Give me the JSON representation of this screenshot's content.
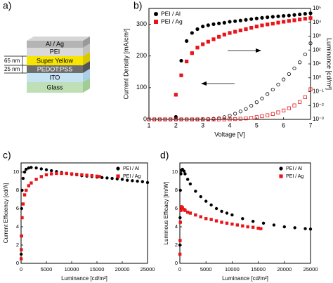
{
  "panel_labels": [
    "a)",
    "b)",
    "c)",
    "d)"
  ],
  "stack": {
    "layers": [
      "Al / Ag",
      "PEI",
      "Super Yellow",
      "PEDOT:PSS",
      "ITO",
      "Glass"
    ],
    "thicknesses": [
      "65 nm",
      "25 nm"
    ]
  },
  "chart_data": [
    {
      "type": "scatter",
      "xlabel": "Voltage [V]",
      "ylabel": "Current Density [mA/cm²]",
      "y2label": "Luminance [cd/m²]",
      "xlim": [
        1,
        7
      ],
      "xticks": [
        1,
        2,
        3,
        4,
        5,
        6,
        7
      ],
      "ylim": [
        0,
        350
      ],
      "yticks": [
        0,
        100,
        200,
        300
      ],
      "y2lim": [
        0.001,
        100000
      ],
      "y2log": true,
      "y2ticks": [
        {
          "value": 0.001,
          "label": "10⁻³"
        },
        {
          "value": 0.01,
          "label": "10⁻²"
        },
        {
          "value": 0.1,
          "label": "10⁻¹"
        },
        {
          "value": 1,
          "label": "10⁰"
        },
        {
          "value": 10,
          "label": "10¹"
        },
        {
          "value": 100,
          "label": "10²"
        },
        {
          "value": 1000,
          "label": "10³"
        },
        {
          "value": 10000,
          "label": "10⁴"
        },
        {
          "value": 100000,
          "label": "10⁵"
        }
      ],
      "legend": "upper left",
      "x": [
        1.0,
        1.2,
        1.4,
        1.6,
        1.8,
        2.0,
        2.2,
        2.4,
        2.6,
        2.8,
        3.0,
        3.2,
        3.4,
        3.6,
        3.8,
        4.0,
        4.2,
        4.4,
        4.6,
        4.8,
        5.0,
        5.2,
        5.4,
        5.6,
        5.8,
        6.0,
        6.2,
        6.4,
        6.6,
        6.8,
        7.0
      ],
      "series": [
        {
          "name": "PEI / Al",
          "color": "#000000",
          "marker": "circle",
          "filled": true,
          "axis": "y2",
          "values": [
            null,
            null,
            null,
            null,
            null,
            0.0015,
            17,
            450,
            1700,
            3200,
            5000,
            6200,
            7300,
            8300,
            9300,
            11000,
            12000,
            13500,
            15000,
            17000,
            19000,
            21000,
            23000,
            25000,
            27000,
            29000,
            31000,
            34000,
            37000,
            41000,
            45000
          ]
        },
        {
          "name": "PEI / Ag",
          "color": "#e8151b",
          "marker": "square",
          "filled": true,
          "axis": "y2",
          "values": [
            null,
            null,
            null,
            null,
            null,
            0.06,
            1.5,
            15,
            60,
            150,
            260,
            400,
            600,
            900,
            1300,
            1700,
            2100,
            2600,
            3200,
            4000,
            5000,
            6000,
            7000,
            8000,
            9500,
            11000,
            12500,
            14000,
            16000,
            18000,
            20000
          ]
        },
        {
          "color": "#000000",
          "marker": "circle",
          "filled": false,
          "values": [
            0,
            0,
            0,
            0,
            0,
            0,
            0,
            0,
            0,
            0,
            0.5,
            1,
            2,
            4,
            7,
            12,
            18,
            25,
            33,
            43,
            54,
            66,
            80,
            94,
            110,
            126,
            143,
            161,
            180,
            205,
            240
          ]
        },
        {
          "color": "#e8151b",
          "marker": "square",
          "filled": false,
          "values": [
            0,
            0,
            0,
            0,
            0,
            0,
            0,
            0,
            0,
            0,
            0,
            0,
            0,
            0,
            0,
            0.5,
            1,
            2,
            3,
            5,
            7,
            10,
            13,
            17,
            22,
            28,
            35,
            44,
            55,
            70,
            95
          ]
        }
      ]
    },
    {
      "type": "scatter",
      "xlabel": "Luminance [cd/m²]",
      "ylabel": "Current Efficiency [cd/A]",
      "xlim": [
        0,
        25000
      ],
      "xticks": [
        0,
        5000,
        10000,
        15000,
        20000,
        25000
      ],
      "ylim": [
        0,
        11
      ],
      "yticks": [
        0,
        2,
        4,
        6,
        8,
        10
      ],
      "legend": "upper right",
      "series": [
        {
          "name": "PEI / Al",
          "color": "#000000",
          "marker": "circle",
          "filled": true,
          "x": [
            20,
            50,
            100,
            200,
            400,
            700,
            1000,
            1500,
            2000,
            3000,
            4000,
            5000,
            6000,
            7000,
            8000,
            9000,
            10000,
            11000,
            12000,
            13000,
            14000,
            15000,
            16000,
            17000,
            18000,
            19000,
            20000,
            21000,
            22000,
            23000,
            24000,
            25000
          ],
          "values": [
            1,
            3,
            6,
            8,
            9.3,
            10,
            10.3,
            10.45,
            10.5,
            10.45,
            10.35,
            10.25,
            10.15,
            10.05,
            9.95,
            9.85,
            9.75,
            9.7,
            9.6,
            9.55,
            9.5,
            9.45,
            9.4,
            9.35,
            9.3,
            9.25,
            9.2,
            9.1,
            9.05,
            9.0,
            8.95,
            8.85
          ]
        },
        {
          "name": "PEI / Ag",
          "color": "#e8151b",
          "marker": "square",
          "filled": true,
          "x": [
            20,
            50,
            100,
            200,
            400,
            700,
            1000,
            1500,
            2000,
            3000,
            4000,
            5000,
            6000,
            7000,
            8000,
            9000,
            10000,
            11000,
            12000,
            13000,
            14000,
            15000,
            15500
          ],
          "values": [
            0.5,
            1.5,
            3,
            5,
            6.5,
            7.5,
            8,
            8.5,
            8.8,
            9.2,
            9.5,
            9.7,
            9.8,
            9.85,
            9.85,
            9.85,
            9.8,
            9.75,
            9.7,
            9.65,
            9.6,
            9.55,
            9.5
          ]
        }
      ]
    },
    {
      "type": "scatter",
      "xlabel": "Luminance [cd/m²]",
      "ylabel": "Luminous Efficacy [lm/W]",
      "xlim": [
        0,
        25000
      ],
      "xticks": [
        0,
        5000,
        10000,
        15000,
        20000,
        25000
      ],
      "ylim": [
        0,
        11
      ],
      "yticks": [
        0,
        2,
        4,
        6,
        8,
        10
      ],
      "legend": "upper right",
      "series": [
        {
          "name": "PEI / Al",
          "color": "#000000",
          "marker": "circle",
          "filled": true,
          "x": [
            20,
            50,
            100,
            200,
            300,
            500,
            800,
            1000,
            1500,
            2000,
            3000,
            4000,
            5000,
            6000,
            7000,
            8000,
            9000,
            10000,
            12000,
            14000,
            16000,
            18000,
            20000,
            22000,
            24000,
            25000
          ],
          "values": [
            2,
            5,
            8,
            9.8,
            10.2,
            10.3,
            10.1,
            9.8,
            9.2,
            8.7,
            7.9,
            7.3,
            6.8,
            6.4,
            6.0,
            5.7,
            5.5,
            5.3,
            4.9,
            4.6,
            4.4,
            4.2,
            4.0,
            3.9,
            3.8,
            3.75
          ]
        },
        {
          "name": "PEI / Ag",
          "color": "#e8151b",
          "marker": "square",
          "filled": true,
          "x": [
            20,
            50,
            100,
            200,
            300,
            500,
            800,
            1000,
            1500,
            2000,
            3000,
            4000,
            5000,
            6000,
            7000,
            8000,
            9000,
            10000,
            11000,
            12000,
            13000,
            14000,
            15000,
            15500
          ],
          "values": [
            1,
            2.5,
            4.5,
            5.8,
            6.2,
            6.1,
            5.9,
            5.8,
            5.6,
            5.5,
            5.3,
            5.1,
            4.9,
            4.8,
            4.65,
            4.5,
            4.4,
            4.3,
            4.2,
            4.1,
            4.0,
            3.95,
            3.85,
            3.8
          ]
        }
      ]
    }
  ]
}
